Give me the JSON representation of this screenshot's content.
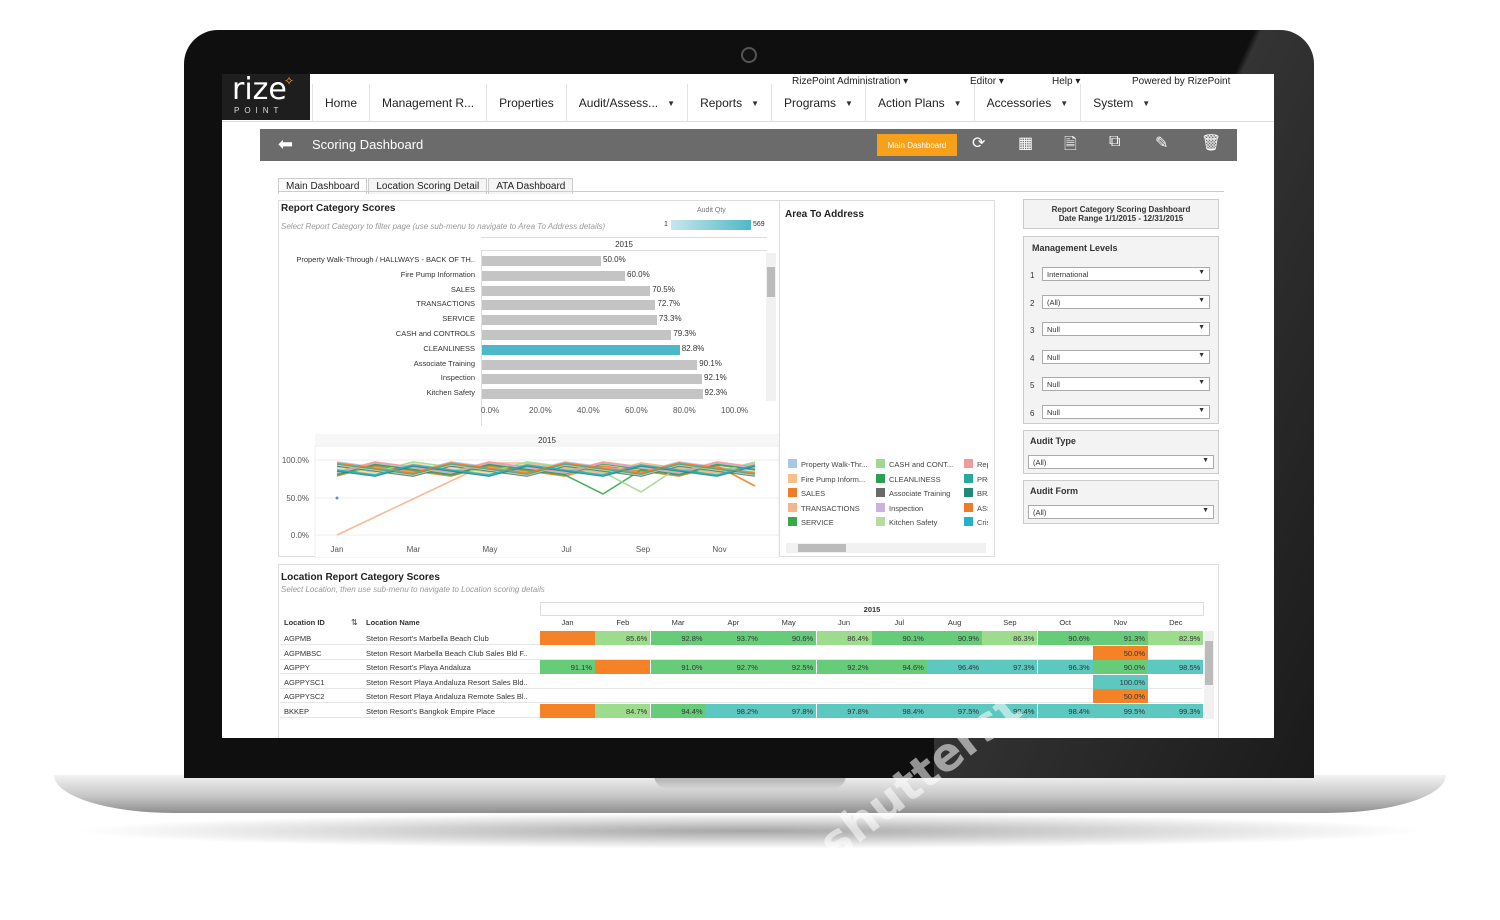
{
  "topbar": {
    "admin": "RizePoint Administration ▾",
    "editor": "Editor ▾",
    "help": "Help ▾",
    "powered": "Powered by RizePoint"
  },
  "logo": {
    "main": "rize",
    "sub": "POINT"
  },
  "menu": [
    {
      "label": "Home",
      "caret": false
    },
    {
      "label": "Management R...",
      "caret": false
    },
    {
      "label": "Properties",
      "caret": false
    },
    {
      "label": "Audit/Assess...",
      "caret": true
    },
    {
      "label": "Reports",
      "caret": true
    },
    {
      "label": "Programs",
      "caret": true
    },
    {
      "label": "Action Plans",
      "caret": true
    },
    {
      "label": "Accessories",
      "caret": true
    },
    {
      "label": "System",
      "caret": true
    }
  ],
  "header": {
    "title": "Scoring Dashboard",
    "main_dashboard_btn": "Main Dashboard"
  },
  "tabs": [
    "Main Dashboard",
    "Location Scoring Detail",
    "ATA Dashboard"
  ],
  "report_category": {
    "title": "Report Category Scores",
    "subtitle": "Select Report Category to filter page (use sub-menu to navigate to Area To Address details)",
    "audit_qty_label": "Audit Qty",
    "audit_qty_min": "1",
    "audit_qty_max": "569",
    "year": "2015",
    "bars": [
      {
        "label": "Property Walk-Through / HALLWAYS - BACK OF TH..",
        "value": 50.0,
        "text": "50.0%",
        "selected": false
      },
      {
        "label": "Fire Pump Information",
        "value": 60.0,
        "text": "60.0%",
        "selected": false
      },
      {
        "label": "SALES",
        "value": 70.5,
        "text": "70.5%",
        "selected": false
      },
      {
        "label": "TRANSACTIONS",
        "value": 72.7,
        "text": "72.7%",
        "selected": false
      },
      {
        "label": "SERVICE",
        "value": 73.3,
        "text": "73.3%",
        "selected": false
      },
      {
        "label": "CASH and CONTROLS",
        "value": 79.3,
        "text": "79.3%",
        "selected": false
      },
      {
        "label": "CLEANLINESS",
        "value": 82.8,
        "text": "82.8%",
        "selected": true
      },
      {
        "label": "Associate Training",
        "value": 90.1,
        "text": "90.1%",
        "selected": false
      },
      {
        "label": "Inspection",
        "value": 92.1,
        "text": "92.1%",
        "selected": false
      },
      {
        "label": "Kitchen Safety",
        "value": 92.3,
        "text": "92.3%",
        "selected": false
      }
    ],
    "x_ticks": [
      "0.0%",
      "20.0%",
      "40.0%",
      "60.0%",
      "80.0%",
      "100.0%"
    ]
  },
  "area_to_address": {
    "title": "Area To Address"
  },
  "trend": {
    "year": "2015",
    "y_ticks": [
      "100.0%",
      "50.0%",
      "0.0%"
    ],
    "x_ticks": [
      "Jan",
      "Mar",
      "May",
      "Jul",
      "Sep",
      "Nov"
    ]
  },
  "legend": [
    {
      "label": "Property Walk-Thr...",
      "color": "#a8c6e8"
    },
    {
      "label": "Fire Pump Inform...",
      "color": "#f5c08a"
    },
    {
      "label": "SALES",
      "color": "#f07c2a"
    },
    {
      "label": "TRANSACTIONS",
      "color": "#f5b48a"
    },
    {
      "label": "SERVICE",
      "color": "#3aa84a"
    },
    {
      "label": "CASH and CONT...",
      "color": "#9fd890"
    },
    {
      "label": "CLEANLINESS",
      "color": "#2e9e55"
    },
    {
      "label": "Associate Training",
      "color": "#6a6a6a"
    },
    {
      "label": "Inspection",
      "color": "#c9b3e0"
    },
    {
      "label": "Kitchen Safety",
      "color": "#b8dba0"
    },
    {
      "label": "Repe",
      "color": "#f09a9a"
    },
    {
      "label": "PRO",
      "color": "#2aa89a"
    },
    {
      "label": "BRA",
      "color": "#1f8a7a"
    },
    {
      "label": "ASS",
      "color": "#f07c2a"
    },
    {
      "label": "Crisi",
      "color": "#20b2c8"
    }
  ],
  "filters": {
    "summary_title": "Report Category Scoring Dashboard",
    "summary_range": "Date Range 1/1/2015 - 12/31/2015",
    "management_levels_label": "Management Levels",
    "levels": [
      {
        "num": "1",
        "value": "International"
      },
      {
        "num": "2",
        "value": "(All)"
      },
      {
        "num": "3",
        "value": "Null"
      },
      {
        "num": "4",
        "value": "Null"
      },
      {
        "num": "5",
        "value": "Null"
      },
      {
        "num": "6",
        "value": "Null"
      }
    ],
    "audit_type_label": "Audit Type",
    "audit_type_value": "(All)",
    "audit_form_label": "Audit Form",
    "audit_form_value": "(All)"
  },
  "location_table": {
    "title": "Location Report Category Scores",
    "subtitle": "Select Location, then use sub-menu to navigate to Location scoring details",
    "year": "2015",
    "col_location_id": "Location ID",
    "col_location_name": "Location Name",
    "months": [
      "Jan",
      "Feb",
      "Mar",
      "Apr",
      "May",
      "Jun",
      "Jul",
      "Aug",
      "Sep",
      "Oct",
      "Nov",
      "Dec"
    ],
    "rows": [
      {
        "id": "AGPMB",
        "name": "Steton Resort's Marbella Beach Club",
        "cells": [
          [
            "",
            "#f58226"
          ],
          [
            "85.6%",
            "#9ddc8c"
          ],
          [
            "92.8%",
            "#66cc7a"
          ],
          [
            "93.7%",
            "#66cc7a"
          ],
          [
            "90.6%",
            "#66cc7a"
          ],
          [
            "86.4%",
            "#9ddc8c"
          ],
          [
            "90.1%",
            "#66cc7a"
          ],
          [
            "90.9%",
            "#66cc7a"
          ],
          [
            "86.3%",
            "#9ddc8c"
          ],
          [
            "90.6%",
            "#66cc7a"
          ],
          [
            "91.3%",
            "#66cc7a"
          ],
          [
            "82.9%",
            "#9ddc8c"
          ]
        ]
      },
      {
        "id": "AGPMBSC",
        "name": "Steton Resort Marbella Beach Club Sales Bld F..",
        "cells": [
          [
            "",
            ""
          ],
          [
            "",
            ""
          ],
          [
            "",
            ""
          ],
          [
            "",
            ""
          ],
          [
            "",
            ""
          ],
          [
            "",
            ""
          ],
          [
            "",
            ""
          ],
          [
            "",
            ""
          ],
          [
            "",
            ""
          ],
          [
            "",
            ""
          ],
          [
            "50.0%",
            "#f58226"
          ],
          [
            "",
            ""
          ]
        ]
      },
      {
        "id": "AGPPY",
        "name": "Steton Resort's Playa Andaluza",
        "cells": [
          [
            "91.1%",
            "#66cc7a"
          ],
          [
            "",
            "#f58226"
          ],
          [
            "91.0%",
            "#66cc7a"
          ],
          [
            "92.7%",
            "#66cc7a"
          ],
          [
            "92.5%",
            "#66cc7a"
          ],
          [
            "92.2%",
            "#66cc7a"
          ],
          [
            "94.6%",
            "#66cc7a"
          ],
          [
            "96.4%",
            "#5cc8c0"
          ],
          [
            "97.3%",
            "#5cc8c0"
          ],
          [
            "96.3%",
            "#5cc8c0"
          ],
          [
            "90.0%",
            "#66cc7a"
          ],
          [
            "98.5%",
            "#5cc8c0"
          ]
        ]
      },
      {
        "id": "AGPPYSC1",
        "name": "Steton Resort Playa Andaluza Resort Sales Bld..",
        "cells": [
          [
            "",
            ""
          ],
          [
            "",
            ""
          ],
          [
            "",
            ""
          ],
          [
            "",
            ""
          ],
          [
            "",
            ""
          ],
          [
            "",
            ""
          ],
          [
            "",
            ""
          ],
          [
            "",
            ""
          ],
          [
            "",
            ""
          ],
          [
            "",
            ""
          ],
          [
            "100.0%",
            "#5cc8c0"
          ],
          [
            "",
            ""
          ]
        ]
      },
      {
        "id": "AGPPYSC2",
        "name": "Steton Resort Playa Andaluza Remote Sales Bl..",
        "cells": [
          [
            "",
            ""
          ],
          [
            "",
            ""
          ],
          [
            "",
            ""
          ],
          [
            "",
            ""
          ],
          [
            "",
            ""
          ],
          [
            "",
            ""
          ],
          [
            "",
            ""
          ],
          [
            "",
            ""
          ],
          [
            "",
            ""
          ],
          [
            "",
            ""
          ],
          [
            "50.0%",
            "#f58226"
          ],
          [
            "",
            ""
          ]
        ]
      },
      {
        "id": "BKKEP",
        "name": "Steton Resort's Bangkok Empire Place",
        "cells": [
          [
            "",
            "#f58226"
          ],
          [
            "84.7%",
            "#9ddc8c"
          ],
          [
            "94.4%",
            "#66cc7a"
          ],
          [
            "98.2%",
            "#5cc8c0"
          ],
          [
            "97.8%",
            "#5cc8c0"
          ],
          [
            "97.8%",
            "#5cc8c0"
          ],
          [
            "98.4%",
            "#5cc8c0"
          ],
          [
            "97.5%",
            "#5cc8c0"
          ],
          [
            "98.4%",
            "#5cc8c0"
          ],
          [
            "98.4%",
            "#5cc8c0"
          ],
          [
            "99.5%",
            "#5cc8c0"
          ],
          [
            "99.3%",
            "#5cc8c0"
          ]
        ]
      }
    ]
  },
  "watermark": "shutterst"
}
